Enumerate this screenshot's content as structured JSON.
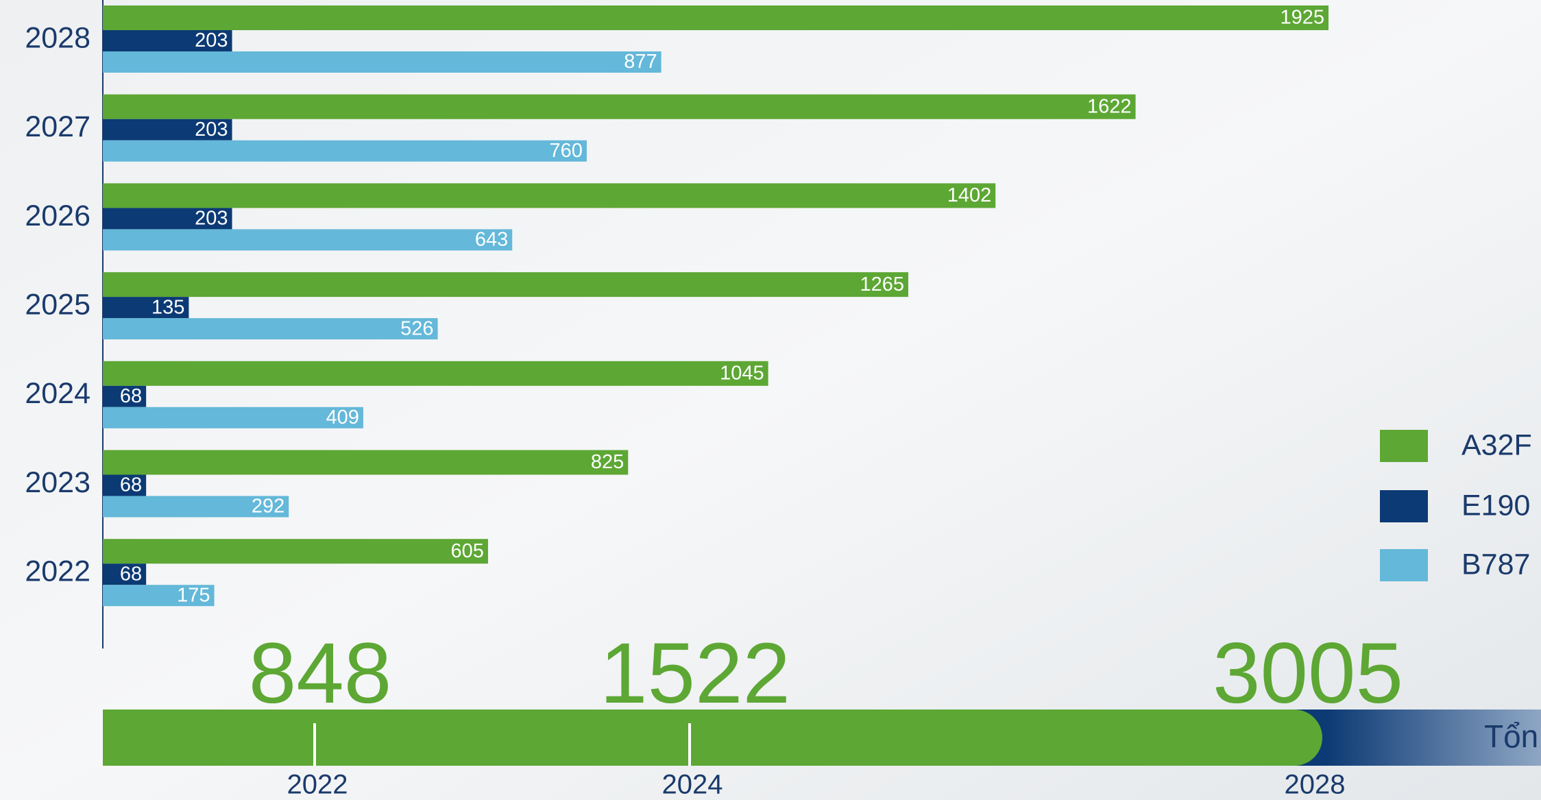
{
  "chart_data": [
    {
      "type": "bar",
      "categories": [
        "2028",
        "2027",
        "2026",
        "2025",
        "2024",
        "2023",
        "2022"
      ],
      "series": [
        {
          "name": "A32F",
          "color": "#5da734",
          "values": [
            1925,
            1622,
            1402,
            1265,
            1045,
            825,
            605
          ]
        },
        {
          "name": "E190",
          "color": "#0c3a74",
          "values": [
            203,
            203,
            203,
            135,
            68,
            68,
            68
          ]
        },
        {
          "name": "B787",
          "color": "#64b8d9",
          "values": [
            877,
            760,
            643,
            526,
            409,
            292,
            175
          ]
        }
      ]
    },
    {
      "type": "timeline",
      "x": [
        "2022",
        "2024",
        "2028"
      ],
      "values": [
        848,
        1522,
        3005
      ],
      "color": "#5da734",
      "label": "Tổn"
    }
  ]
}
